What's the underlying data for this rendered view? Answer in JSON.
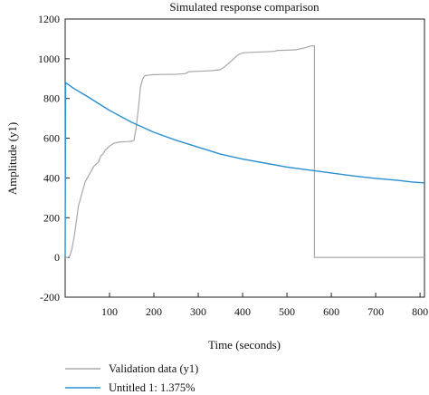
{
  "chart_data": {
    "type": "line",
    "title": "Simulated response comparison",
    "xlabel": "Time (seconds)",
    "ylabel": "Amplitude (y1)",
    "xlim": [
      0,
      810
    ],
    "ylim": [
      -200,
      1200
    ],
    "grid": false,
    "legend_position": "bottom-left",
    "x_ticks": [
      100,
      200,
      300,
      400,
      500,
      600,
      700,
      800
    ],
    "y_ticks": [
      -200,
      0,
      200,
      400,
      600,
      800,
      1000,
      1200
    ],
    "series": [
      {
        "name": "Validation data (y1)",
        "color": "#a8a8a8",
        "points": [
          [
            0,
            0
          ],
          [
            5,
            0
          ],
          [
            10,
            5
          ],
          [
            15,
            40
          ],
          [
            20,
            100
          ],
          [
            25,
            180
          ],
          [
            30,
            260
          ],
          [
            35,
            300
          ],
          [
            40,
            340
          ],
          [
            45,
            380
          ],
          [
            50,
            400
          ],
          [
            55,
            420
          ],
          [
            60,
            440
          ],
          [
            65,
            460
          ],
          [
            70,
            470
          ],
          [
            75,
            480
          ],
          [
            80,
            510
          ],
          [
            85,
            520
          ],
          [
            90,
            540
          ],
          [
            95,
            550
          ],
          [
            100,
            560
          ],
          [
            110,
            575
          ],
          [
            120,
            580
          ],
          [
            130,
            582
          ],
          [
            140,
            583
          ],
          [
            150,
            585
          ],
          [
            155,
            590
          ],
          [
            160,
            650
          ],
          [
            165,
            750
          ],
          [
            170,
            860
          ],
          [
            175,
            900
          ],
          [
            180,
            915
          ],
          [
            190,
            918
          ],
          [
            200,
            920
          ],
          [
            220,
            921
          ],
          [
            250,
            922
          ],
          [
            270,
            925
          ],
          [
            280,
            935
          ],
          [
            300,
            937
          ],
          [
            330,
            940
          ],
          [
            350,
            945
          ],
          [
            360,
            960
          ],
          [
            375,
            990
          ],
          [
            390,
            1020
          ],
          [
            400,
            1030
          ],
          [
            420,
            1032
          ],
          [
            450,
            1035
          ],
          [
            470,
            1037
          ],
          [
            480,
            1042
          ],
          [
            500,
            1043
          ],
          [
            520,
            1045
          ],
          [
            540,
            1055
          ],
          [
            555,
            1065
          ],
          [
            562,
            1065
          ],
          [
            562,
            0
          ],
          [
            580,
            0
          ],
          [
            810,
            0
          ]
        ]
      },
      {
        "name": "Untitled 1: 1.375%",
        "color": "#2a8fd0",
        "points": [
          [
            0,
            0
          ],
          [
            1,
            880
          ],
          [
            20,
            850
          ],
          [
            50,
            810
          ],
          [
            100,
            740
          ],
          [
            150,
            680
          ],
          [
            200,
            630
          ],
          [
            250,
            590
          ],
          [
            300,
            555
          ],
          [
            350,
            520
          ],
          [
            400,
            495
          ],
          [
            450,
            475
          ],
          [
            500,
            455
          ],
          [
            550,
            440
          ],
          [
            600,
            425
          ],
          [
            650,
            410
          ],
          [
            700,
            398
          ],
          [
            750,
            388
          ],
          [
            780,
            380
          ],
          [
            810,
            375
          ]
        ]
      }
    ]
  }
}
